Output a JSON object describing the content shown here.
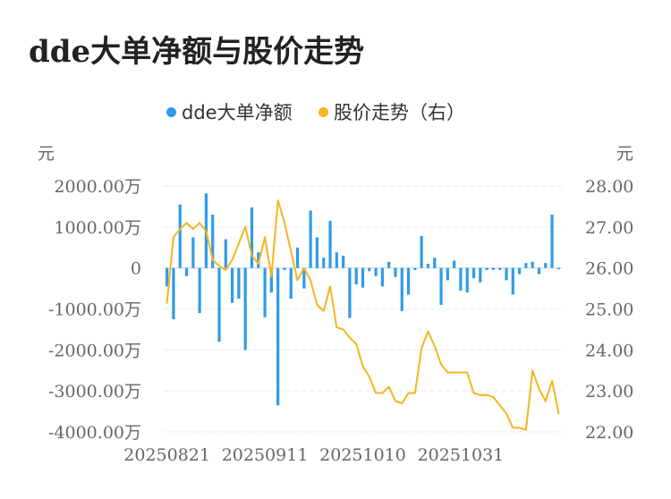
{
  "title": "dde大单净额与股价走势",
  "legend": [
    {
      "name": "dde大单净额",
      "color": "#2f9be8"
    },
    {
      "name": "股价走势（右）",
      "color": "#f5b51f"
    }
  ],
  "chart_data": {
    "type": "bar+line",
    "y_left": {
      "unit_label": "元",
      "min": -4000,
      "max": 2000,
      "tick_labels": [
        "2000.00万",
        "1000.00万",
        "0",
        "-1000.00万",
        "-2000.00万",
        "-3000.00万",
        "-4000.00万"
      ],
      "tick_values": [
        2000,
        1000,
        0,
        -1000,
        -2000,
        -3000,
        -4000
      ]
    },
    "y_right": {
      "unit_label": "元",
      "min": 22,
      "max": 28,
      "tick_labels": [
        "28.00",
        "27.00",
        "26.00",
        "25.00",
        "24.00",
        "23.00",
        "22.00"
      ],
      "tick_values": [
        28,
        27,
        26,
        25,
        24,
        23,
        22
      ]
    },
    "x_tick_labels": [
      "20250821",
      "20250911",
      "20251010",
      "20251031"
    ],
    "x_tick_index": [
      0,
      15,
      30,
      45
    ],
    "grid": "horizontal",
    "series": [
      {
        "name": "dde大单净额",
        "type": "bar",
        "axis": "left",
        "unit": "万元",
        "values": [
          -450,
          -1250,
          1550,
          -200,
          750,
          -1100,
          1820,
          1300,
          -1800,
          700,
          -850,
          -750,
          -2000,
          1480,
          380,
          -1200,
          -600,
          -3350,
          -50,
          -750,
          500,
          -500,
          1400,
          750,
          250,
          1150,
          380,
          300,
          -1220,
          -400,
          -480,
          -80,
          -200,
          -450,
          150,
          -220,
          -1050,
          -650,
          -50,
          780,
          100,
          250,
          -900,
          -300,
          180,
          -550,
          -600,
          -250,
          -350,
          -50,
          -50,
          -50,
          -300,
          -650,
          -150,
          120,
          150,
          -150,
          120,
          1300,
          -30
        ],
        "color": "#2f9be8"
      },
      {
        "name": "股价走势（右）",
        "type": "line",
        "axis": "right",
        "unit": "元",
        "values": [
          25.15,
          26.75,
          26.95,
          27.1,
          26.95,
          27.1,
          26.9,
          26.2,
          26.05,
          25.95,
          26.2,
          26.6,
          27.0,
          26.3,
          26.1,
          26.75,
          25.8,
          27.65,
          27.1,
          26.4,
          25.7,
          26.0,
          25.7,
          25.1,
          24.95,
          25.55,
          24.55,
          24.5,
          24.3,
          24.15,
          23.6,
          23.35,
          22.95,
          22.95,
          23.1,
          22.75,
          22.7,
          22.95,
          22.95,
          24.05,
          24.45,
          24.1,
          23.65,
          23.45,
          23.45,
          23.45,
          23.45,
          22.95,
          22.9,
          22.9,
          22.85,
          22.65,
          22.45,
          22.1,
          22.1,
          22.05,
          23.5,
          23.05,
          22.75,
          23.25,
          22.45
        ],
        "color": "#f5b51f"
      }
    ]
  }
}
